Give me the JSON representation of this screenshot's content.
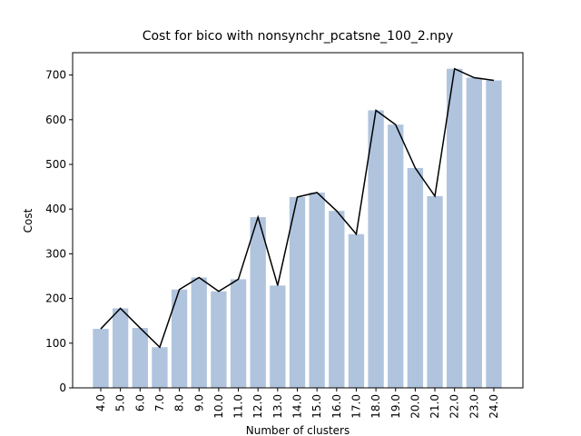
{
  "chart_data": {
    "type": "bar",
    "title": "Cost for bico with nonsynchr_pcatsne_100_2.npy",
    "x_label": "Number of clusters",
    "y_label": "Cost",
    "categories": [
      "4.0",
      "5.0",
      "6.0",
      "7.0",
      "8.0",
      "9.0",
      "10.0",
      "11.0",
      "12.0",
      "13.0",
      "14.0",
      "15.0",
      "16.0",
      "17.0",
      "18.0",
      "19.0",
      "20.0",
      "21.0",
      "22.0",
      "23.0",
      "24.0"
    ],
    "values": [
      132,
      178,
      134,
      91,
      220,
      247,
      216,
      243,
      382,
      229,
      427,
      437,
      396,
      344,
      621,
      589,
      492,
      429,
      714,
      694,
      688
    ],
    "color": "#b0c4de",
    "line_color": "#000000",
    "ylim": [
      0,
      750
    ],
    "yticks": [
      0,
      100,
      200,
      300,
      400,
      500,
      600,
      700
    ]
  }
}
